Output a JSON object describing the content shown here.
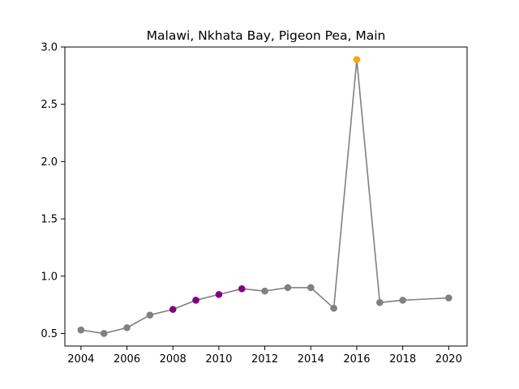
{
  "chart_data": {
    "type": "line",
    "title": "Malawi, Nkhata Bay, Pigeon Pea, Main",
    "xlabel": "",
    "ylabel": "",
    "xlim": [
      2003.3,
      2020.8
    ],
    "ylim": [
      0.39,
      3.0
    ],
    "x_ticks": [
      2004,
      2006,
      2008,
      2010,
      2012,
      2014,
      2016,
      2018,
      2020
    ],
    "y_ticks": [
      0.5,
      1.0,
      1.5,
      2.0,
      2.5,
      3.0
    ],
    "y_tick_labels": [
      "0.5",
      "1.0",
      "1.5",
      "2.0",
      "2.5",
      "3.0"
    ],
    "grid": false,
    "line_color": "#808080",
    "series": [
      {
        "x": [
          2004,
          2005,
          2006,
          2007,
          2008,
          2009,
          2010,
          2011,
          2012,
          2013,
          2014,
          2015,
          2016,
          2017,
          2018,
          2020
        ],
        "values": [
          0.53,
          0.5,
          0.55,
          0.66,
          0.71,
          0.79,
          0.84,
          0.89,
          0.87,
          0.9,
          0.9,
          0.72,
          2.89,
          0.77,
          0.79,
          0.81
        ],
        "point_colors": [
          "#808080",
          "#808080",
          "#808080",
          "#808080",
          "#800080",
          "#800080",
          "#800080",
          "#800080",
          "#808080",
          "#808080",
          "#808080",
          "#808080",
          "#ffa500",
          "#808080",
          "#808080",
          "#808080"
        ]
      }
    ]
  }
}
